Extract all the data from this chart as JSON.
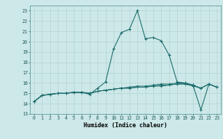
{
  "title": "",
  "xlabel": "Humidex (Indice chaleur)",
  "background_color": "#cde8e8",
  "grid_color": "#b8d5d5",
  "line_color": "#1a6b6b",
  "xlim": [
    -0.5,
    23.5
  ],
  "ylim": [
    13,
    23.5
  ],
  "yticks": [
    13,
    14,
    15,
    16,
    17,
    18,
    19,
    20,
    21,
    22,
    23
  ],
  "xticks": [
    0,
    1,
    2,
    3,
    4,
    5,
    6,
    7,
    8,
    9,
    10,
    11,
    12,
    13,
    14,
    15,
    16,
    17,
    18,
    19,
    20,
    21,
    22,
    23
  ],
  "series": [
    [
      14.2,
      14.8,
      14.9,
      15.0,
      15.0,
      15.1,
      15.1,
      14.9,
      15.5,
      16.1,
      19.3,
      20.9,
      21.2,
      23.0,
      20.3,
      20.4,
      20.1,
      18.7,
      16.1,
      16.0,
      15.8,
      13.4,
      15.9,
      15.6
    ],
    [
      14.2,
      14.8,
      14.9,
      15.0,
      15.0,
      15.1,
      15.1,
      15.0,
      15.2,
      15.3,
      15.4,
      15.5,
      15.6,
      15.7,
      15.7,
      15.8,
      15.9,
      15.9,
      16.0,
      16.0,
      15.8,
      15.5,
      15.9,
      15.6
    ],
    [
      14.2,
      14.8,
      14.9,
      15.0,
      15.0,
      15.1,
      15.1,
      15.0,
      15.2,
      15.3,
      15.4,
      15.5,
      15.5,
      15.6,
      15.6,
      15.7,
      15.8,
      15.8,
      15.9,
      15.9,
      15.8,
      15.5,
      15.9,
      15.6
    ],
    [
      14.2,
      14.8,
      14.9,
      15.0,
      15.0,
      15.1,
      15.1,
      15.0,
      15.2,
      15.3,
      15.4,
      15.5,
      15.5,
      15.6,
      15.6,
      15.7,
      15.7,
      15.8,
      15.9,
      15.9,
      15.7,
      15.5,
      15.9,
      15.6
    ]
  ]
}
